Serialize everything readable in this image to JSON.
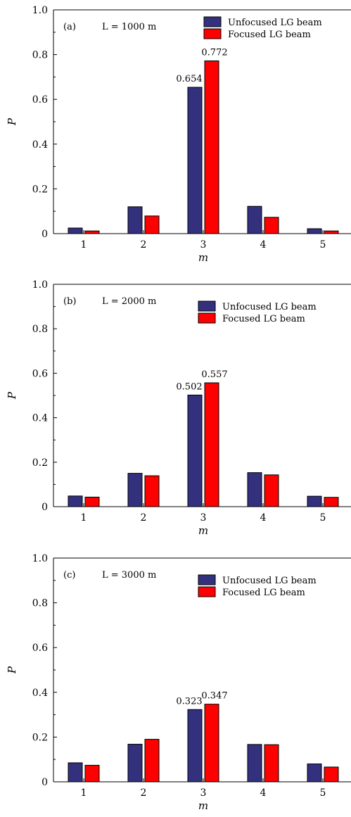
{
  "chart_data": [
    {
      "type": "bar",
      "panel_label": "(a)",
      "annotation": "L = 1000 m",
      "categories": [
        "1",
        "2",
        "3",
        "4",
        "5"
      ],
      "series": [
        {
          "name": "Unfocused LG beam",
          "values": [
            0.025,
            0.12,
            0.654,
            0.122,
            0.022
          ]
        },
        {
          "name": "Focused LG beam",
          "values": [
            0.012,
            0.079,
            0.772,
            0.073,
            0.012
          ]
        }
      ],
      "data_labels": {
        "unfocused": "0.654",
        "focused": "0.772"
      },
      "xlabel": "m",
      "ylabel": "P",
      "ylim": [
        0,
        1.0
      ],
      "yticks": [
        "0",
        "0.2",
        "0.4",
        "0.6",
        "0.8",
        "1.0"
      ],
      "legend_position": "top-right",
      "grid": false
    },
    {
      "type": "bar",
      "panel_label": "(b)",
      "annotation": "L = 2000 m",
      "categories": [
        "1",
        "2",
        "3",
        "4",
        "5"
      ],
      "series": [
        {
          "name": "Unfocused LG beam",
          "values": [
            0.048,
            0.15,
            0.502,
            0.153,
            0.047
          ]
        },
        {
          "name": "Focused LG beam",
          "values": [
            0.043,
            0.139,
            0.557,
            0.143,
            0.042
          ]
        }
      ],
      "data_labels": {
        "unfocused": "0.502",
        "focused": "0.557"
      },
      "xlabel": "m",
      "ylabel": "P",
      "ylim": [
        0,
        1.0
      ],
      "yticks": [
        "0",
        "0.2",
        "0.4",
        "0.6",
        "0.8",
        "1.0"
      ],
      "legend_position": "top-right",
      "grid": false
    },
    {
      "type": "bar",
      "panel_label": "(c)",
      "annotation": "L = 3000 m",
      "categories": [
        "1",
        "2",
        "3",
        "4",
        "5"
      ],
      "series": [
        {
          "name": "Unfocused LG beam",
          "values": [
            0.085,
            0.168,
            0.323,
            0.167,
            0.08
          ]
        },
        {
          "name": "Focused LG beam",
          "values": [
            0.074,
            0.19,
            0.347,
            0.166,
            0.066
          ]
        }
      ],
      "data_labels": {
        "unfocused": "0.323",
        "focused": "0.347"
      },
      "xlabel": "m",
      "ylabel": "P",
      "ylim": [
        0,
        1.0
      ],
      "yticks": [
        "0",
        "0.2",
        "0.4",
        "0.6",
        "0.8",
        "1.0"
      ],
      "legend_position": "top-right",
      "grid": false
    }
  ],
  "colors": {
    "unfocused": "#33307e",
    "focused": "#ff0000",
    "outline": "#000000"
  }
}
